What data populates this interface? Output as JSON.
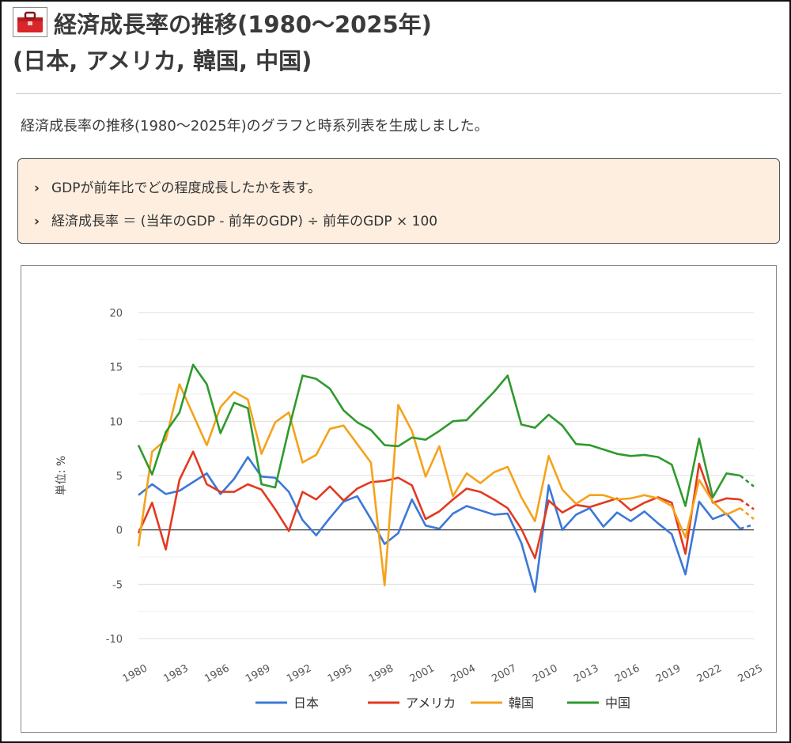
{
  "header": {
    "title_line1": "経済成長率の推移(1980～2025年)",
    "title_line2": "(日本, アメリカ, 韓国, 中国)",
    "icon": "toolbox-icon"
  },
  "intro": "経済成長率の推移(1980～2025年)のグラフと時系列表を生成しました。",
  "notes": [
    "GDPが前年比でどの程度成長したかを表す。",
    "経済成長率 ＝ (当年のGDP - 前年のGDP) ÷ 前年のGDP × 100"
  ],
  "colors": {
    "japan": "#3b78d8",
    "usa": "#e3391f",
    "korea": "#f5a21b",
    "china": "#2e9a2e",
    "note_bg": "#fdeedf"
  },
  "chart_data": {
    "type": "line",
    "title": "",
    "xlabel": "",
    "ylabel": "単位: %",
    "ylim": [
      -10,
      20
    ],
    "yticks": [
      20,
      15,
      10,
      5,
      0,
      -5,
      -10
    ],
    "xticks": [
      "1980",
      "1983",
      "1986",
      "1989",
      "1992",
      "1995",
      "1998",
      "2001",
      "2004",
      "2007",
      "2010",
      "2013",
      "2016",
      "2019",
      "2022",
      "2025"
    ],
    "x": [
      1980,
      1981,
      1982,
      1983,
      1984,
      1985,
      1986,
      1987,
      1988,
      1989,
      1990,
      1991,
      1992,
      1993,
      1994,
      1995,
      1996,
      1997,
      1998,
      1999,
      2000,
      2001,
      2002,
      2003,
      2004,
      2005,
      2006,
      2007,
      2008,
      2009,
      2010,
      2011,
      2012,
      2013,
      2014,
      2015,
      2016,
      2017,
      2018,
      2019,
      2020,
      2021,
      2022,
      2023,
      2024,
      2025
    ],
    "forecast_from": 2024,
    "grid": true,
    "legend": "bottom",
    "series": [
      {
        "name": "日本",
        "color_key": "japan",
        "values": [
          3.2,
          4.2,
          3.3,
          3.6,
          4.4,
          5.2,
          3.3,
          4.7,
          6.7,
          4.9,
          4.8,
          3.5,
          0.9,
          -0.5,
          1.1,
          2.6,
          3.1,
          1.0,
          -1.3,
          -0.3,
          2.8,
          0.4,
          0.1,
          1.5,
          2.2,
          1.8,
          1.4,
          1.5,
          -1.2,
          -5.7,
          4.1,
          0.0,
          1.4,
          2.0,
          0.3,
          1.6,
          0.8,
          1.7,
          0.6,
          -0.4,
          -4.1,
          2.6,
          1.0,
          1.5,
          0.1,
          0.5
        ]
      },
      {
        "name": "アメリカ",
        "color_key": "usa",
        "values": [
          -0.3,
          2.5,
          -1.8,
          4.6,
          7.2,
          4.2,
          3.5,
          3.5,
          4.2,
          3.7,
          1.9,
          -0.1,
          3.5,
          2.8,
          4.0,
          2.7,
          3.8,
          4.4,
          4.5,
          4.8,
          4.1,
          1.0,
          1.7,
          2.8,
          3.8,
          3.5,
          2.8,
          2.0,
          0.1,
          -2.6,
          2.7,
          1.6,
          2.3,
          2.1,
          2.5,
          2.9,
          1.8,
          2.5,
          3.0,
          2.5,
          -2.2,
          6.1,
          2.5,
          2.9,
          2.8,
          1.9
        ]
      },
      {
        "name": "韓国",
        "color_key": "korea",
        "values": [
          -1.5,
          7.2,
          8.3,
          13.4,
          10.6,
          7.8,
          11.3,
          12.7,
          12.0,
          7.0,
          9.9,
          10.8,
          6.2,
          6.9,
          9.3,
          9.6,
          7.9,
          6.2,
          -5.1,
          11.5,
          9.1,
          4.9,
          7.7,
          3.1,
          5.2,
          4.3,
          5.3,
          5.8,
          3.0,
          0.8,
          6.8,
          3.7,
          2.4,
          3.2,
          3.2,
          2.8,
          2.9,
          3.2,
          2.9,
          2.2,
          -0.7,
          4.6,
          2.6,
          1.4,
          2.0,
          1.0
        ]
      },
      {
        "name": "中国",
        "color_key": "china",
        "values": [
          7.8,
          5.1,
          9.0,
          10.8,
          15.2,
          13.4,
          8.9,
          11.7,
          11.2,
          4.2,
          3.9,
          9.3,
          14.2,
          13.9,
          13.0,
          11.0,
          9.9,
          9.2,
          7.8,
          7.7,
          8.5,
          8.3,
          9.1,
          10.0,
          10.1,
          11.4,
          12.7,
          14.2,
          9.7,
          9.4,
          10.6,
          9.6,
          7.9,
          7.8,
          7.4,
          7.0,
          6.8,
          6.9,
          6.7,
          6.0,
          2.2,
          8.4,
          3.0,
          5.2,
          5.0,
          4.0
        ]
      }
    ]
  }
}
